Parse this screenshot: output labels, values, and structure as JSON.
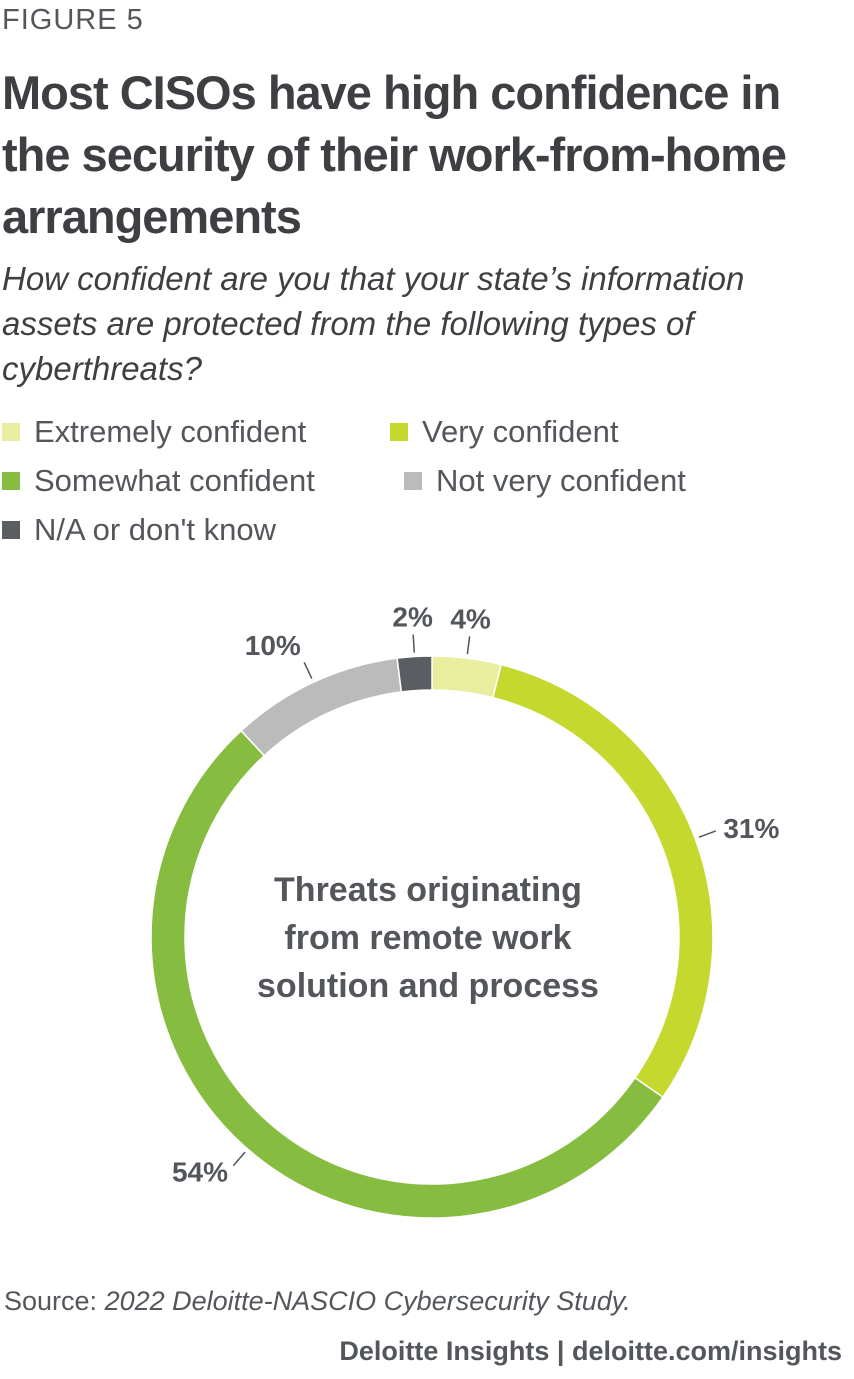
{
  "figure_label": "FIGURE 5",
  "title": "Most CISOs have high confidence in the security of their work-from-home arrangements",
  "subtitle": "How confident are you that your state’s information assets are protected from the following types of cyberthreats?",
  "source_prefix": "Source: ",
  "source_text": "2022 Deloitte-NASCIO Cybersecurity Study.",
  "footer": "Deloitte Insights | deloitte.com/insights",
  "chart_data": {
    "type": "pie",
    "variant": "donut",
    "center_label": "Threats originating from remote work solution and process",
    "center_label_lines": [
      "Threats originating",
      "from remote work",
      "solution and process"
    ],
    "series": [
      {
        "name": "Extremely confident",
        "value": 4,
        "label": "4%",
        "color": "#e8ee9e"
      },
      {
        "name": "Very confident",
        "value": 31,
        "label": "31%",
        "color": "#c4d82e"
      },
      {
        "name": "Somewhat confident",
        "value": 54,
        "label": "54%",
        "color": "#86bc40"
      },
      {
        "name": "Not very confident",
        "value": 10,
        "label": "10%",
        "color": "#bbbbbb"
      },
      {
        "name": "N/A or don't know",
        "value": 2,
        "label": "2%",
        "color": "#5a5e63"
      }
    ],
    "legend_placement": "top"
  }
}
